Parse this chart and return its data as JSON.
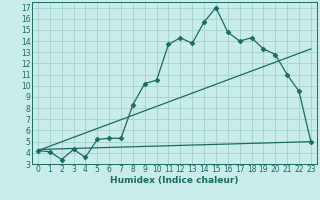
{
  "xlabel": "Humidex (Indice chaleur)",
  "bg_color": "#c8ece9",
  "grid_color": "#aad4d0",
  "line_color": "#1a6b60",
  "xlim": [
    -0.5,
    23.5
  ],
  "ylim": [
    3,
    17.5
  ],
  "xticks": [
    0,
    1,
    2,
    3,
    4,
    5,
    6,
    7,
    8,
    9,
    10,
    11,
    12,
    13,
    14,
    15,
    16,
    17,
    18,
    19,
    20,
    21,
    22,
    23
  ],
  "yticks": [
    3,
    4,
    5,
    6,
    7,
    8,
    9,
    10,
    11,
    12,
    13,
    14,
    15,
    16,
    17
  ],
  "curve1_x": [
    0,
    1,
    2,
    3,
    4,
    5,
    6,
    7,
    8,
    9,
    10,
    11,
    12,
    13,
    14,
    15,
    16,
    17,
    18,
    19,
    20,
    21,
    22,
    23
  ],
  "curve1_y": [
    4.2,
    4.1,
    3.4,
    4.3,
    3.6,
    5.2,
    5.3,
    5.3,
    8.3,
    10.2,
    10.5,
    13.7,
    14.3,
    13.8,
    15.7,
    17.0,
    14.8,
    14.0,
    14.3,
    13.3,
    12.8,
    11.0,
    9.5,
    5.0
  ],
  "curve2_x": [
    0,
    23
  ],
  "curve2_y": [
    4.2,
    13.3
  ],
  "curve3_x": [
    0,
    23
  ],
  "curve3_y": [
    4.3,
    5.0
  ]
}
